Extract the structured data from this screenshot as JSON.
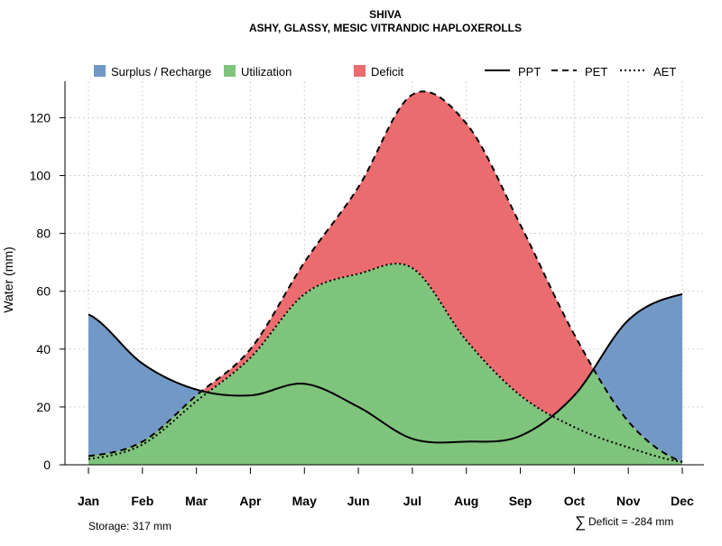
{
  "chart_data": {
    "type": "area",
    "title": "SHIVA",
    "subtitle": "ASHY, GLASSY, MESIC VITRANDIC HAPLOXEROLLS",
    "xlabel": "",
    "ylabel": "Water (mm)",
    "categories": [
      "Jan",
      "Feb",
      "Mar",
      "Apr",
      "May",
      "Jun",
      "Jul",
      "Aug",
      "Sep",
      "Oct",
      "Nov",
      "Dec"
    ],
    "ylim": [
      0,
      132
    ],
    "yticks": [
      0,
      20,
      40,
      60,
      80,
      100,
      120
    ],
    "grid": true,
    "legend_position": "top",
    "series": [
      {
        "name": "PPT",
        "style": "solid",
        "values": [
          52,
          35,
          26,
          24,
          28,
          20,
          9,
          8,
          10,
          24,
          50,
          59
        ]
      },
      {
        "name": "PET",
        "style": "dashed",
        "values": [
          3,
          8,
          24,
          40,
          70,
          96,
          128,
          118,
          83,
          45,
          15,
          1
        ]
      },
      {
        "name": "AET",
        "style": "dotted",
        "values": [
          2,
          7,
          22,
          37,
          59,
          66,
          68,
          43,
          24,
          13,
          6,
          1
        ]
      }
    ],
    "areas": [
      {
        "name": "Surplus / Recharge",
        "color": "#7299C6"
      },
      {
        "name": "Utilization",
        "color": "#7FC47C"
      },
      {
        "name": "Deficit",
        "color": "#EA6C6F"
      }
    ],
    "annotations": {
      "storage": "Storage: 317 mm",
      "deficit_symbol": "∑",
      "deficit": "Deficit = -284 mm"
    }
  }
}
